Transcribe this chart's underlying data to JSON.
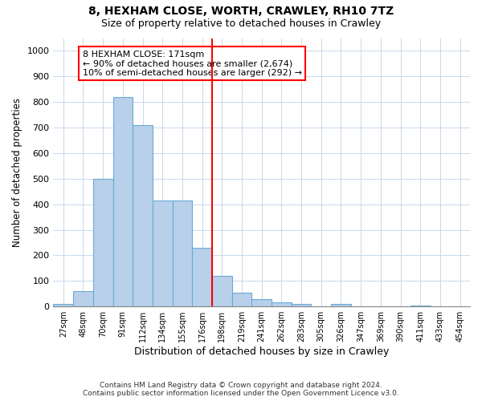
{
  "title1": "8, HEXHAM CLOSE, WORTH, CRAWLEY, RH10 7TZ",
  "title2": "Size of property relative to detached houses in Crawley",
  "xlabel": "Distribution of detached houses by size in Crawley",
  "ylabel": "Number of detached properties",
  "categories": [
    "27sqm",
    "48sqm",
    "70sqm",
    "91sqm",
    "112sqm",
    "134sqm",
    "155sqm",
    "176sqm",
    "198sqm",
    "219sqm",
    "241sqm",
    "262sqm",
    "283sqm",
    "305sqm",
    "326sqm",
    "347sqm",
    "369sqm",
    "390sqm",
    "411sqm",
    "433sqm",
    "454sqm"
  ],
  "values": [
    10,
    60,
    500,
    820,
    710,
    415,
    415,
    230,
    120,
    55,
    30,
    15,
    10,
    0,
    10,
    0,
    0,
    0,
    5,
    0,
    0
  ],
  "bar_color": "#b8d0ea",
  "bar_edge_color": "#6aaad4",
  "redline_x": 7.5,
  "annotation_line1": "8 HEXHAM CLOSE: 171sqm",
  "annotation_line2": "← 90% of detached houses are smaller (2,674)",
  "annotation_line3": "10% of semi-detached houses are larger (292) →",
  "ylim": [
    0,
    1050
  ],
  "yticks": [
    0,
    100,
    200,
    300,
    400,
    500,
    600,
    700,
    800,
    900,
    1000
  ],
  "footer1": "Contains HM Land Registry data © Crown copyright and database right 2024.",
  "footer2": "Contains public sector information licensed under the Open Government Licence v3.0.",
  "bg_color": "#ffffff",
  "grid_color": "#c8d8ee"
}
